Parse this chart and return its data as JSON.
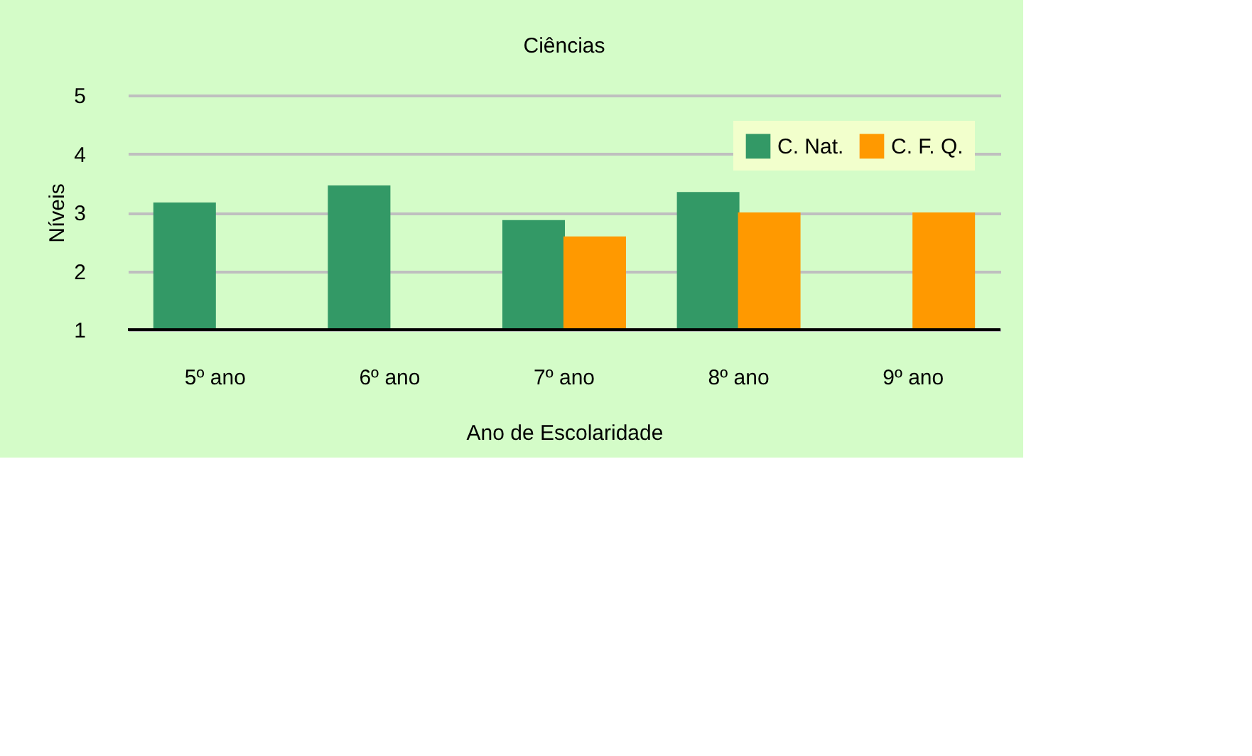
{
  "chart_data": {
    "type": "bar",
    "title": "Ciências",
    "xlabel": "Ano de Escolaridade",
    "ylabel": "Níveis",
    "categories": [
      "5º ano",
      "6º ano",
      "7º ano",
      "8º ano",
      "9º ano"
    ],
    "series": [
      {
        "name": "C. Nat.",
        "color": "#339966",
        "values": [
          3.17,
          3.46,
          2.87,
          3.35,
          null
        ]
      },
      {
        "name": "C. F. Q.",
        "color": "#ff9900",
        "values": [
          null,
          null,
          2.59,
          3.0,
          3.0
        ]
      }
    ],
    "ylim": [
      1,
      5
    ],
    "yticks": [
      1,
      2,
      3,
      4,
      5
    ],
    "grid": "y",
    "legend": "top right"
  }
}
